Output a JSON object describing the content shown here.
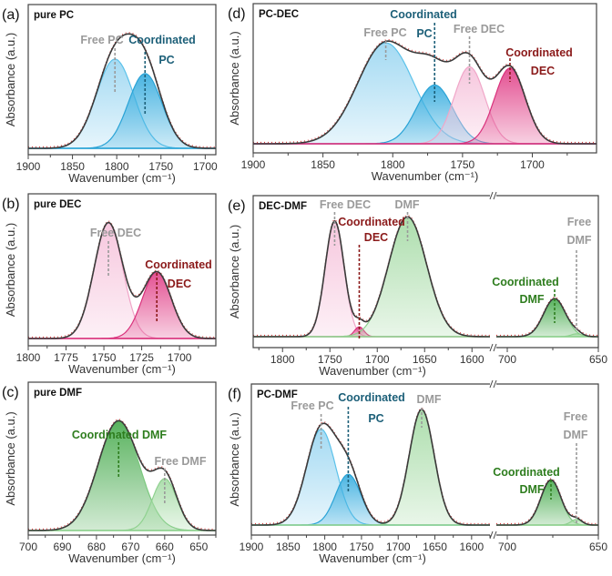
{
  "chart_data": [
    {
      "type": "area",
      "panel": "(a)",
      "title": "pure PC",
      "xlabel": "Wavenumber (cm⁻¹)",
      "ylabel": "Absorbance (a.u.)",
      "segments": [
        {
          "xlim": [
            1900,
            1688
          ],
          "ticks": [
            1900,
            1850,
            1800,
            1750,
            1700
          ],
          "minor": 25,
          "peaks": [
            {
              "label": [
                "Free PC"
              ],
              "center": 1802,
              "amp": 0.62,
              "sigma": 21,
              "fill": "#9fd8f2",
              "edge": "#5cc2ea",
              "labelColor": "#9a9a9a"
            },
            {
              "label": [
                "Coordinated",
                "PC"
              ],
              "center": 1768,
              "amp": 0.52,
              "sigma": 19,
              "fill": "#3fb0e0",
              "edge": "#2aa3d6",
              "labelColor": "#1c5f78"
            }
          ]
        }
      ]
    },
    {
      "type": "area",
      "panel": "(b)",
      "title": "pure DEC",
      "xlabel": "Wavenumber (cm⁻¹)",
      "ylabel": "Absorbance (a.u.)",
      "segments": [
        {
          "xlim": [
            1800,
            1676
          ],
          "ticks": [
            1800,
            1775,
            1750,
            1725,
            1700
          ],
          "minor": 12.5,
          "peaks": [
            {
              "label": [
                "Free DEC"
              ],
              "center": 1747,
              "amp": 0.8,
              "sigma": 9.5,
              "fill": "#f6c4dc",
              "edge": "#f0a6c8",
              "labelColor": "#9a9a9a"
            },
            {
              "label": [
                "Coordinated",
                "DEC"
              ],
              "center": 1715,
              "amp": 0.46,
              "sigma": 9.5,
              "fill": "#e2478c",
              "edge": "#d9327c",
              "labelColor": "#8b1a1a"
            }
          ]
        }
      ]
    },
    {
      "type": "area",
      "panel": "(c)",
      "title": "pure DMF",
      "xlabel": "Wavenumber (cm⁻¹)",
      "ylabel": "Absorbance (a.u.)",
      "segments": [
        {
          "xlim": [
            700,
            645
          ],
          "ticks": [
            700,
            690,
            680,
            670,
            660,
            650
          ],
          "minor": 5,
          "peaks": [
            {
              "label": [
                "Coordinated DMF"
              ],
              "center": 673.5,
              "amp": 0.74,
              "sigma": 6,
              "fill": "#4fae55",
              "edge": "#7cc97f",
              "labelColor": "#2e7d1e"
            },
            {
              "label": [
                "Free DMF"
              ],
              "center": 660,
              "amp": 0.35,
              "sigma": 3.6,
              "fill": "#a8dca8",
              "edge": "#8fd18f",
              "labelColor": "#9a9a9a"
            }
          ]
        }
      ]
    },
    {
      "type": "area",
      "panel": "(d)",
      "title": "PC-DEC",
      "xlabel": "Wavenumber (cm⁻¹)",
      "ylabel": "Absorbance (a.u.)",
      "segments": [
        {
          "xlim": [
            1900,
            1654
          ],
          "ticks": [
            1900,
            1850,
            1800,
            1750,
            1700
          ],
          "minor": 25,
          "peaks": [
            {
              "label": [
                "Free PC"
              ],
              "center": 1805,
              "amp": 0.72,
              "sigma": 20,
              "fill": "#9fd8f2",
              "edge": "#5cc2ea",
              "labelColor": "#9a9a9a"
            },
            {
              "label": [
                "Coordinated",
                "PC"
              ],
              "center": 1770,
              "amp": 0.42,
              "sigma": 13,
              "fill": "#3fb0e0",
              "edge": "#2aa3d6",
              "labelColor": "#1c5f78"
            },
            {
              "label": [
                "Free DEC"
              ],
              "center": 1745,
              "amp": 0.55,
              "sigma": 11,
              "fill": "#f6c4dc",
              "edge": "#f0a6c8",
              "labelColor": "#9a9a9a"
            },
            {
              "label": [
                "Coordinated",
                "DEC"
              ],
              "center": 1716,
              "amp": 0.54,
              "sigma": 11,
              "fill": "#e2478c",
              "edge": "#d9327c",
              "labelColor": "#8b1a1a"
            }
          ]
        }
      ]
    },
    {
      "type": "area",
      "panel": "(e)",
      "title": "DEC-DMF",
      "xlabel": "Wavenumber (cm⁻¹)",
      "ylabel": "Absorbance (a.u.)",
      "segments": [
        {
          "xlim": [
            1831,
            1581
          ],
          "ticks": [
            1800,
            1750,
            1700,
            1650,
            1600
          ],
          "minor": 25,
          "peaks": [
            {
              "label": [
                "Free DEC"
              ],
              "center": 1745,
              "amp": 0.82,
              "sigma": 10,
              "fill": "#f6c4dc",
              "edge": "#f0a6c8",
              "labelColor": "#9a9a9a"
            },
            {
              "label": [
                "Coordinated",
                "DEC"
              ],
              "center": 1719,
              "amp": 0.07,
              "sigma": 5,
              "fill": "#e2478c",
              "edge": "#d9327c",
              "labelColor": "#8b1a1a"
            },
            {
              "label": [
                "DMF"
              ],
              "center": 1668,
              "amp": 0.85,
              "sigma": 20,
              "fill": "#a8dca8",
              "edge": "#8fd18f",
              "labelColor": "#9a9a9a"
            }
          ]
        },
        {
          "xlim": [
            706,
            650
          ],
          "ticks": [
            700,
            650
          ],
          "minor": 25,
          "peaks": [
            {
              "label": [
                "Coordinated",
                "DMF"
              ],
              "center": 674,
              "amp": 0.27,
              "sigma": 6,
              "fill": "#4fae55",
              "edge": "#7cc97f",
              "labelColor": "#2e7d1e"
            },
            {
              "label": [
                "Free",
                "DMF"
              ],
              "center": 662,
              "amp": 0.02,
              "sigma": 3,
              "fill": "#a8dca8",
              "edge": "#8fd18f",
              "labelColor": "#9a9a9a"
            }
          ]
        }
      ]
    },
    {
      "type": "area",
      "panel": "(f)",
      "title": "PC-DMF",
      "xlabel": "Wavenumber (cm⁻¹)",
      "ylabel": "Absorbance (a.u.)",
      "segments": [
        {
          "xlim": [
            1900,
            1575
          ],
          "ticks": [
            1900,
            1850,
            1800,
            1750,
            1700,
            1650,
            1600
          ],
          "minor": 25,
          "peaks": [
            {
              "label": [
                "Free PC"
              ],
              "center": 1805,
              "amp": 0.68,
              "sigma": 20,
              "fill": "#9fd8f2",
              "edge": "#5cc2ea",
              "labelColor": "#9a9a9a"
            },
            {
              "label": [
                "Coordinated",
                "PC"
              ],
              "center": 1768,
              "amp": 0.36,
              "sigma": 17,
              "fill": "#3fb0e0",
              "edge": "#2aa3d6",
              "labelColor": "#1c5f78"
            },
            {
              "label": [
                "DMF"
              ],
              "center": 1668,
              "amp": 0.82,
              "sigma": 17,
              "fill": "#a8dca8",
              "edge": "#8fd18f",
              "labelColor": "#9a9a9a"
            }
          ]
        },
        {
          "xlim": [
            706,
            650
          ],
          "ticks": [
            700,
            650
          ],
          "minor": 25,
          "peaks": [
            {
              "label": [
                "Coordinated",
                "DMF"
              ],
              "center": 676,
              "amp": 0.32,
              "sigma": 5.5,
              "fill": "#4fae55",
              "edge": "#7cc97f",
              "labelColor": "#2e7d1e"
            },
            {
              "label": [
                "Free",
                "DMF"
              ],
              "center": 662,
              "amp": 0.04,
              "sigma": 3,
              "fill": "#a8dca8",
              "edge": "#8fd18f",
              "labelColor": "#9a9a9a"
            }
          ]
        }
      ]
    }
  ],
  "colors": {
    "fit": "#3a3a3a",
    "experimental": "#d84040",
    "axis": "#444444"
  }
}
